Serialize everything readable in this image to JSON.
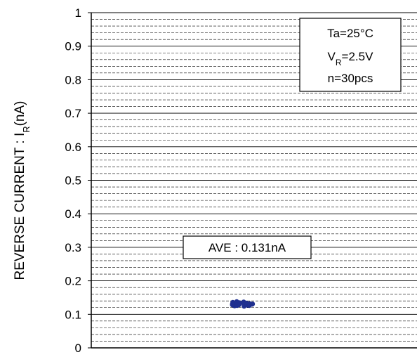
{
  "chart_data": {
    "type": "scatter",
    "title": "",
    "xlabel": "",
    "ylabel": {
      "prefix": "REVERSE CURRENT : I",
      "subscript": "R",
      "suffix": "(nA)"
    },
    "ylim": [
      0,
      1
    ],
    "y_ticks": [
      "0",
      "0.1",
      "0.2",
      "0.3",
      "0.4",
      "0.5",
      "0.6",
      "0.7",
      "0.8",
      "0.9",
      "1"
    ],
    "grid": "major solid every 0.1, minor dashed every 0.02",
    "conditions": [
      {
        "text": "Ta=25°C"
      },
      {
        "main": "V",
        "sub": "R",
        "rest": "=2.5V"
      },
      {
        "text": "n=30pcs"
      }
    ],
    "average_label": "AVE : 0.131nA",
    "point_color": "#1f2f8f",
    "points": [
      0.131,
      0.133,
      0.128,
      0.136,
      0.125,
      0.13,
      0.134,
      0.127,
      0.132,
      0.129,
      0.138,
      0.126,
      0.131,
      0.135,
      0.128,
      0.13,
      0.133,
      0.124,
      0.137,
      0.129,
      0.131,
      0.127,
      0.134,
      0.13,
      0.126,
      0.132,
      0.129,
      0.128,
      0.13,
      0.131
    ]
  }
}
